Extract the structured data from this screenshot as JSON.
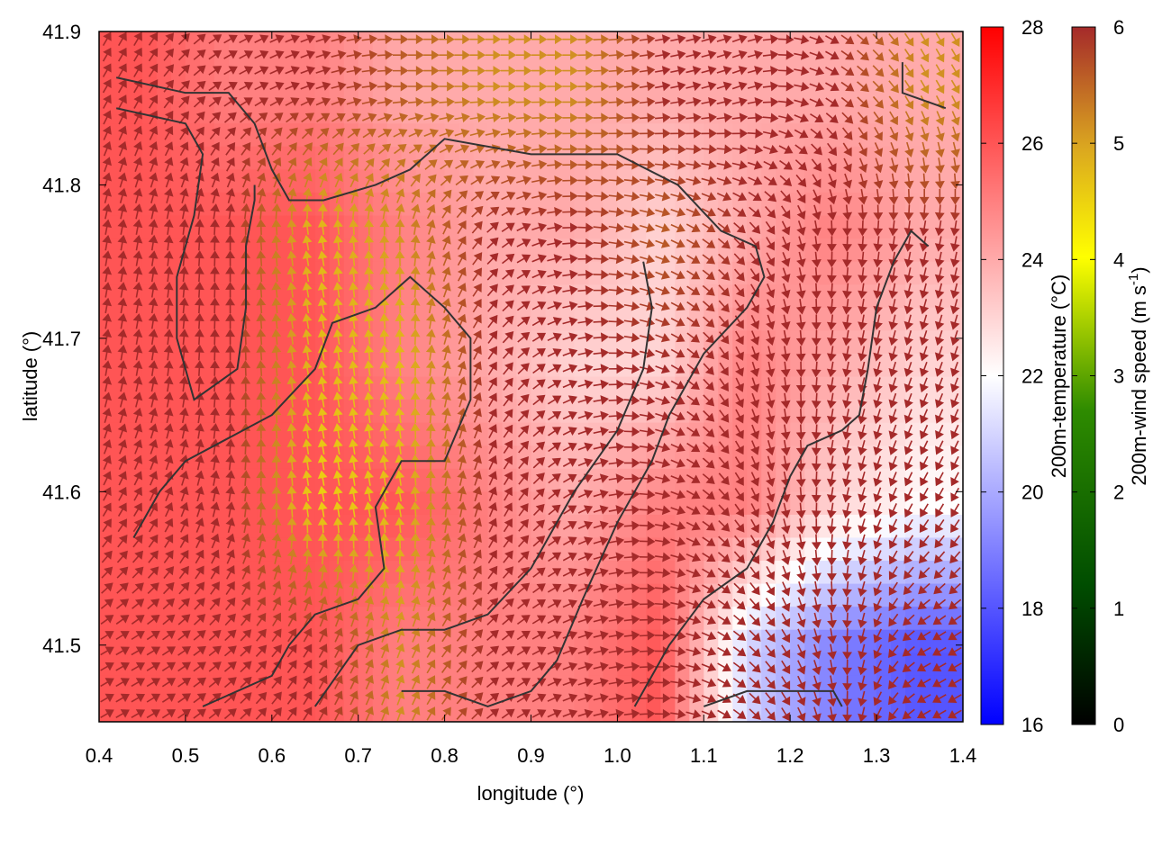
{
  "chart_data": {
    "type": "heatmap",
    "xlabel": "longitude (°)",
    "ylabel": "latitude (°)",
    "xlim": [
      0.4,
      1.4
    ],
    "ylim": [
      41.45,
      41.9
    ],
    "xticks": [
      "0.4",
      "0.5",
      "0.6",
      "0.7",
      "0.8",
      "0.9",
      "1.0",
      "1.1",
      "1.2",
      "1.3",
      "1.4"
    ],
    "yticks": [
      "41.5",
      "41.6",
      "41.7",
      "41.8",
      "41.9"
    ],
    "grid": false,
    "temperature": {
      "label": "200m-temperature (°C)",
      "range": [
        16,
        28
      ],
      "ticks": [
        "16",
        "18",
        "20",
        "22",
        "24",
        "26",
        "28"
      ],
      "palette": [
        "#0000ff",
        "#ffffff",
        "#ff0000"
      ],
      "lon": [
        0.45,
        0.55,
        0.65,
        0.75,
        0.85,
        0.95,
        1.05,
        1.15,
        1.25,
        1.35
      ],
      "lat": [
        41.86,
        41.77,
        41.68,
        41.59,
        41.5
      ],
      "values": [
        [
          26,
          25,
          25,
          24,
          24,
          24,
          24,
          24,
          24,
          24
        ],
        [
          26,
          26,
          26,
          25,
          24,
          24,
          23,
          24,
          25,
          24
        ],
        [
          26,
          26,
          26,
          25,
          24,
          23,
          23,
          25,
          24,
          23
        ],
        [
          26,
          26,
          26,
          26,
          25,
          24,
          25,
          25,
          23,
          22
        ],
        [
          26,
          26,
          26,
          25,
          25,
          25,
          26,
          21,
          19,
          18
        ]
      ]
    },
    "wind": {
      "label_main": "200m-wind speed (m s",
      "label_sup": "-1",
      "label_end": ")",
      "range": [
        0,
        6
      ],
      "ticks": [
        "0",
        "1",
        "2",
        "3",
        "4",
        "5",
        "6"
      ],
      "palette": [
        "#000000",
        "#006400",
        "#228b22",
        "#ffff00",
        "#daa520",
        "#a52a2a"
      ],
      "speed": [
        [
          6,
          6,
          6,
          5.5,
          5,
          5,
          6,
          6,
          6,
          5
        ],
        [
          6,
          6,
          4.5,
          5,
          6,
          6,
          5.5,
          6,
          6,
          6
        ],
        [
          6,
          6,
          4.5,
          4.5,
          6,
          6,
          6,
          6,
          6,
          6
        ],
        [
          6,
          6,
          4.2,
          4.5,
          6,
          6,
          6,
          6,
          6,
          6
        ],
        [
          6,
          6,
          6,
          5,
          6,
          6,
          6,
          6,
          6,
          6
        ]
      ],
      "direction_deg": [
        [
          60,
          30,
          20,
          0,
          0,
          0,
          10,
          20,
          -30,
          -60
        ],
        [
          80,
          90,
          100,
          90,
          45,
          0,
          -20,
          -45,
          -90,
          -100
        ],
        [
          80,
          90,
          100,
          95,
          60,
          20,
          -20,
          -70,
          -100,
          -110
        ],
        [
          60,
          80,
          100,
          100,
          70,
          30,
          -10,
          -60,
          -100,
          -120
        ],
        [
          30,
          40,
          60,
          70,
          40,
          20,
          0,
          -40,
          -80,
          -150
        ]
      ]
    },
    "contours": [
      [
        [
          0.42,
          41.87
        ],
        [
          0.5,
          41.86
        ],
        [
          0.55,
          41.86
        ],
        [
          0.58,
          41.84
        ],
        [
          0.6,
          41.81
        ],
        [
          0.62,
          41.79
        ],
        [
          0.66,
          41.79
        ],
        [
          0.72,
          41.8
        ],
        [
          0.76,
          41.81
        ],
        [
          0.8,
          41.83
        ],
        [
          0.9,
          41.82
        ],
        [
          1.0,
          41.82
        ],
        [
          1.07,
          41.8
        ],
        [
          1.12,
          41.77
        ],
        [
          1.16,
          41.76
        ],
        [
          1.17,
          41.74
        ],
        [
          1.15,
          41.72
        ],
        [
          1.1,
          41.69
        ],
        [
          1.06,
          41.65
        ],
        [
          1.04,
          41.62
        ],
        [
          1.0,
          41.58
        ],
        [
          0.96,
          41.53
        ],
        [
          0.93,
          41.49
        ],
        [
          0.9,
          41.47
        ],
        [
          0.85,
          41.46
        ],
        [
          0.8,
          41.47
        ],
        [
          0.75,
          41.47
        ]
      ],
      [
        [
          0.42,
          41.85
        ],
        [
          0.5,
          41.84
        ],
        [
          0.52,
          41.82
        ],
        [
          0.51,
          41.78
        ],
        [
          0.49,
          41.74
        ],
        [
          0.49,
          41.7
        ],
        [
          0.51,
          41.66
        ],
        [
          0.56,
          41.68
        ],
        [
          0.57,
          41.72
        ],
        [
          0.57,
          41.76
        ],
        [
          0.58,
          41.79
        ],
        [
          0.58,
          41.8
        ]
      ],
      [
        [
          0.44,
          41.57
        ],
        [
          0.47,
          41.6
        ],
        [
          0.5,
          41.62
        ],
        [
          0.6,
          41.65
        ],
        [
          0.65,
          41.68
        ],
        [
          0.67,
          41.71
        ],
        [
          0.72,
          41.72
        ],
        [
          0.76,
          41.74
        ],
        [
          0.8,
          41.72
        ],
        [
          0.83,
          41.7
        ],
        [
          0.83,
          41.66
        ],
        [
          0.8,
          41.62
        ],
        [
          0.75,
          41.62
        ],
        [
          0.72,
          41.59
        ],
        [
          0.73,
          41.55
        ],
        [
          0.7,
          41.53
        ],
        [
          0.65,
          41.52
        ],
        [
          0.62,
          41.5
        ],
        [
          0.6,
          41.48
        ],
        [
          0.52,
          41.46
        ]
      ],
      [
        [
          0.65,
          41.46
        ],
        [
          0.7,
          41.5
        ],
        [
          0.75,
          41.51
        ],
        [
          0.8,
          41.51
        ],
        [
          0.85,
          41.52
        ],
        [
          0.9,
          41.55
        ],
        [
          0.95,
          41.6
        ],
        [
          1.0,
          41.64
        ],
        [
          1.03,
          41.68
        ],
        [
          1.04,
          41.72
        ],
        [
          1.03,
          41.75
        ]
      ],
      [
        [
          1.02,
          41.46
        ],
        [
          1.06,
          41.5
        ],
        [
          1.1,
          41.53
        ],
        [
          1.15,
          41.55
        ],
        [
          1.18,
          41.58
        ],
        [
          1.2,
          41.61
        ],
        [
          1.22,
          41.63
        ],
        [
          1.26,
          41.64
        ],
        [
          1.28,
          41.65
        ],
        [
          1.29,
          41.68
        ],
        [
          1.3,
          41.72
        ],
        [
          1.32,
          41.75
        ],
        [
          1.34,
          41.77
        ],
        [
          1.36,
          41.76
        ]
      ],
      [
        [
          1.1,
          41.46
        ],
        [
          1.15,
          41.47
        ],
        [
          1.2,
          41.47
        ],
        [
          1.25,
          41.47
        ],
        [
          1.26,
          41.46
        ]
      ],
      [
        [
          1.33,
          41.88
        ],
        [
          1.33,
          41.86
        ],
        [
          1.38,
          41.85
        ]
      ]
    ]
  }
}
